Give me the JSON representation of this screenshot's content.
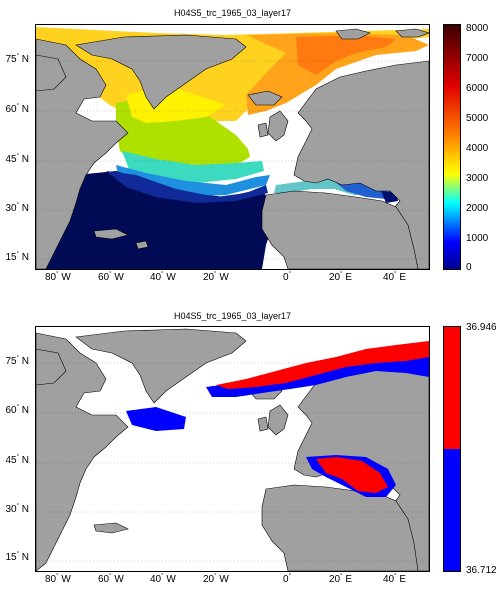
{
  "panels": [
    {
      "title": "H04S5_trc_1965_03_layer17",
      "lat_ticks": [
        {
          "deg": "75",
          "hem": "N"
        },
        {
          "deg": "60",
          "hem": "N"
        },
        {
          "deg": "45",
          "hem": "N"
        },
        {
          "deg": "30",
          "hem": "N"
        },
        {
          "deg": "15",
          "hem": "N"
        }
      ],
      "colorbar": {
        "type": "jet",
        "ticks": [
          "8000",
          "7000",
          "6000",
          "5000",
          "4000",
          "3000",
          "2000",
          "1000",
          "0"
        ],
        "range": [
          0,
          8000
        ]
      }
    },
    {
      "title": "H04S5_trc_1965_03_layer17",
      "lat_ticks": [
        {
          "deg": "75",
          "hem": "N"
        },
        {
          "deg": "60",
          "hem": "N"
        },
        {
          "deg": "45",
          "hem": "N"
        },
        {
          "deg": "30",
          "hem": "N"
        },
        {
          "deg": "15",
          "hem": "N"
        }
      ],
      "lon_ticks": [
        {
          "deg": "80",
          "hem": "W"
        },
        {
          "deg": "60",
          "hem": "W"
        },
        {
          "deg": "40",
          "hem": "W"
        },
        {
          "deg": "20",
          "hem": "W"
        },
        {
          "deg": "0",
          "hem": ""
        },
        {
          "deg": "20",
          "hem": "E"
        },
        {
          "deg": "40",
          "hem": "E"
        }
      ],
      "colorbar": {
        "type": "two-class",
        "top_label": "36.946",
        "bottom_label": "36.712",
        "colors": [
          "#ff0000",
          "#0000ff"
        ]
      }
    }
  ],
  "colors": {
    "land": "#a0a0a0",
    "ocean": "#ffffff",
    "deep": "#000a55"
  }
}
